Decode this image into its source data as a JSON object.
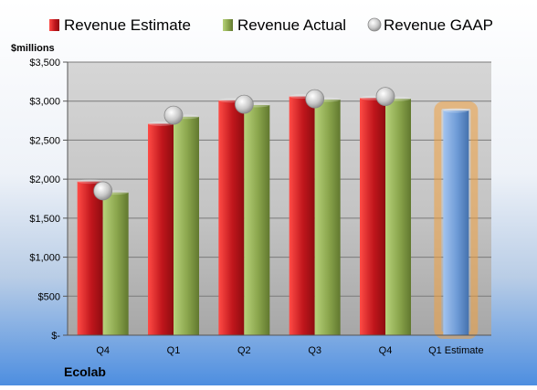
{
  "chart_data": {
    "type": "bar",
    "title": "",
    "ylabel": "$millions",
    "company": "Ecolab",
    "categories": [
      "Q4",
      "Q1",
      "Q2",
      "Q3",
      "Q4",
      "Q1 Estimate"
    ],
    "ylim": [
      0,
      3500
    ],
    "ytick_values": [
      0,
      500,
      1000,
      1500,
      2000,
      2500,
      3000,
      3500
    ],
    "ytick_labels": [
      "$-",
      "$500",
      "$1,000",
      "$1,500",
      "$2,000",
      "$2,500",
      "$3,000",
      "$3,500"
    ],
    "grid": true,
    "legend_position": "top",
    "series": [
      {
        "name": "Revenue Estimate",
        "kind": "bar",
        "color": "#c0161c",
        "values": [
          1970,
          2710,
          3010,
          3060,
          3040,
          null
        ]
      },
      {
        "name": "Revenue Actual",
        "kind": "bar",
        "color": "#8aa54c",
        "values": [
          1830,
          2800,
          2950,
          3020,
          3030,
          null
        ]
      },
      {
        "name": "Revenue GAAP",
        "kind": "marker",
        "color": "#b8b8b8",
        "values": [
          1850,
          2820,
          2960,
          3030,
          3060,
          null
        ]
      },
      {
        "name": "Q1 Estimate",
        "kind": "bar",
        "color": "#6d9ad6",
        "highlight": "#f0a040",
        "values": [
          null,
          null,
          null,
          null,
          null,
          2880
        ]
      }
    ]
  }
}
